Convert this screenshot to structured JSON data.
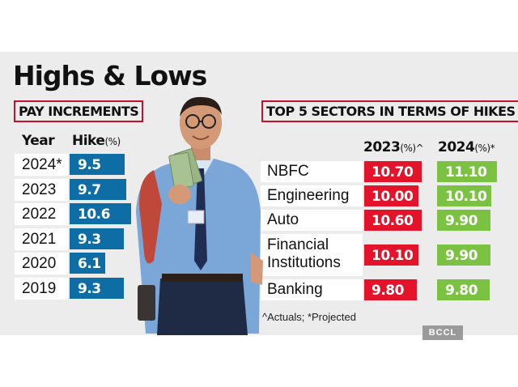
{
  "title": "Highs & Lows",
  "left": {
    "label": "PAY INCREMENTS",
    "col_year": "Year",
    "col_hike": "Hike",
    "col_hike_unit": "(%)"
  },
  "right": {
    "label": "TOP 5 SECTORS IN TERMS OF HIKES",
    "col_2023": "2023",
    "col_2023_unit": "(%)^",
    "col_2024": "2024",
    "col_2024_unit": "(%)*"
  },
  "footnote": "^Actuals; *Projected",
  "brand": "BCCL",
  "colors": {
    "blue": "#0f6da6",
    "red": "#e3132a",
    "green": "#7cc242",
    "title_box": "#c8102e"
  },
  "chart_data": [
    {
      "type": "bar",
      "title": "PAY INCREMENTS",
      "xlabel": "Year",
      "ylabel": "Hike (%)",
      "categories": [
        "2024*",
        "2023",
        "2022",
        "2021",
        "2020",
        "2019"
      ],
      "values": [
        9.5,
        9.7,
        10.6,
        9.3,
        6.1,
        9.3
      ],
      "value_labels": [
        "9.5",
        "9.7",
        "10.6",
        "9.3",
        "6.1",
        "9.3"
      ],
      "orientation": "horizontal",
      "ylim": [
        0,
        10.6
      ]
    },
    {
      "type": "bar",
      "title": "TOP 5 SECTORS IN TERMS OF HIKES",
      "orientation": "horizontal",
      "categories": [
        "NBFC",
        "Engineering",
        "Auto",
        "Financial Institutions",
        "Banking"
      ],
      "category_lines": [
        [
          "NBFC"
        ],
        [
          "Engineering"
        ],
        [
          "Auto"
        ],
        [
          "Financial",
          "Institutions"
        ],
        [
          "Banking"
        ]
      ],
      "series": [
        {
          "name": "2023(%)^",
          "values": [
            10.7,
            10.0,
            10.6,
            10.1,
            9.8
          ],
          "labels": [
            "10.70",
            "10.00",
            "10.60",
            "10.10",
            "9.80"
          ],
          "color": "#e3132a"
        },
        {
          "name": "2024(%)*",
          "values": [
            11.1,
            10.1,
            9.9,
            9.9,
            9.8
          ],
          "labels": [
            "11.10",
            "10.10",
            "9.90",
            "9.90",
            "9.80"
          ],
          "color": "#7cc242"
        }
      ],
      "ylim": [
        0,
        11.1
      ]
    }
  ]
}
